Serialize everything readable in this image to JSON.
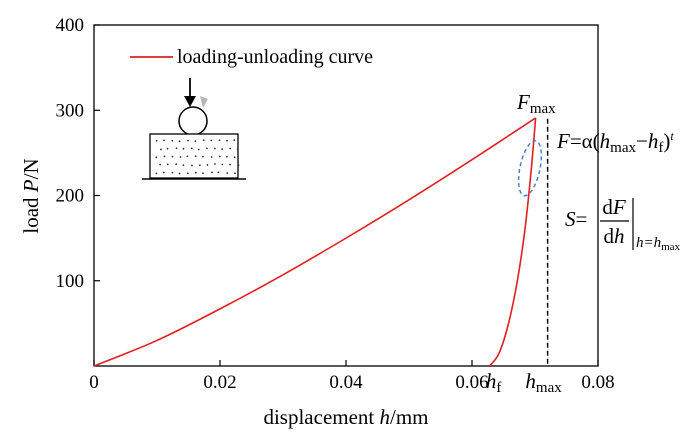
{
  "chart_data": {
    "type": "line",
    "title": "",
    "xlabel": {
      "text": "displacement ",
      "var": "h",
      "unit": "/mm"
    },
    "ylabel": {
      "text": "load ",
      "var": "P",
      "unit": "/N"
    },
    "xlim": [
      0,
      0.08
    ],
    "ylim": [
      0,
      400
    ],
    "x_ticks": [
      "0",
      "0.02",
      "0.04",
      "0.06",
      "0.08"
    ],
    "x_tick_values": [
      0,
      0.02,
      0.04,
      0.06,
      0.08
    ],
    "y_ticks": [
      "100",
      "200",
      "300",
      "400"
    ],
    "y_tick_values": [
      100,
      200,
      300,
      400
    ],
    "grid": false,
    "legend": {
      "position": "top-left",
      "entries": [
        "loading-unloading curve"
      ]
    },
    "series": [
      {
        "name": "loading-unloading curve",
        "color": "#e02020",
        "loading": {
          "x": [
            0,
            0.01,
            0.02,
            0.03,
            0.04,
            0.05,
            0.06,
            0.0701
          ],
          "y": [
            0,
            30,
            67,
            107,
            150,
            195,
            242,
            291
          ]
        },
        "unloading": {
          "x": [
            0.0701,
            0.0694,
            0.0684,
            0.0672,
            0.0658,
            0.0643,
            0.0628
          ],
          "y": [
            291,
            230,
            160,
            100,
            50,
            15,
            0
          ]
        }
      }
    ],
    "annotations": {
      "fmax": {
        "main": "F",
        "sub": "max",
        "x": 0.0701,
        "y": 291
      },
      "unload_eq": {
        "lhs": "F",
        "eq": "=",
        "alpha": "α(",
        "h": "h",
        "hsub": "max",
        "minus": "−",
        "hf": "h",
        "hfsub": "f",
        "close": ")",
        "sup": "t"
      },
      "stiffness": {
        "lhs": "S",
        "eq": "=",
        "num_d": "d",
        "num_var": "F",
        "den_d": "d",
        "den_var": "h",
        "eval": "h=h",
        "eval_sub": "max"
      },
      "hf_label": {
        "main": "h",
        "sub": "f",
        "x": 0.0628
      },
      "hmax_label": {
        "main": "h",
        "sub": "max",
        "x": 0.072
      }
    },
    "colors": {
      "curve": "#e02020",
      "ellipse": "#4a7fd0",
      "axis": "#000000"
    }
  }
}
